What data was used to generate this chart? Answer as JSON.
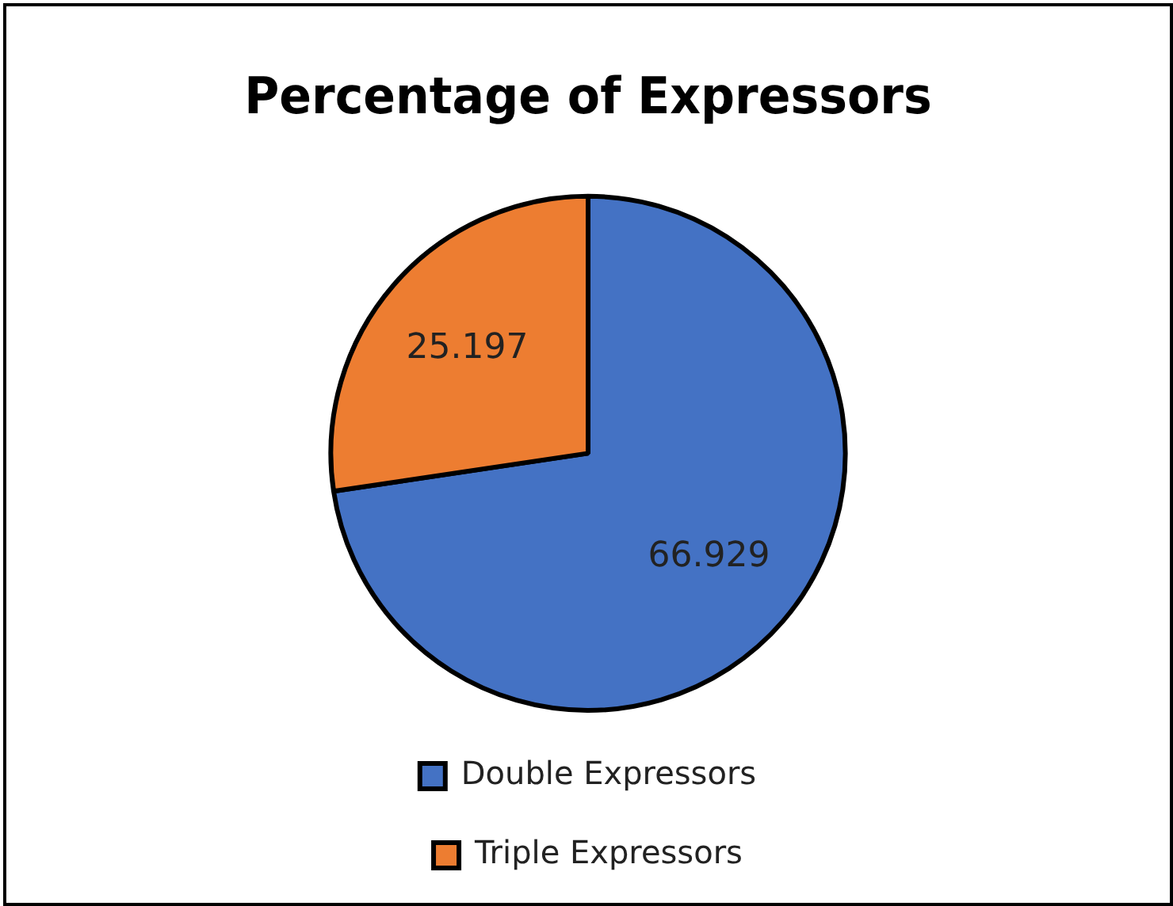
{
  "chart_data": {
    "type": "pie",
    "title": "Percentage of Expressors",
    "categories": [
      "Double Expressors",
      "Triple Expressors"
    ],
    "values": [
      66.929,
      25.197
    ],
    "colors": [
      "#4472c4",
      "#ed7d31"
    ],
    "data_labels": true,
    "legend": "bottom"
  }
}
